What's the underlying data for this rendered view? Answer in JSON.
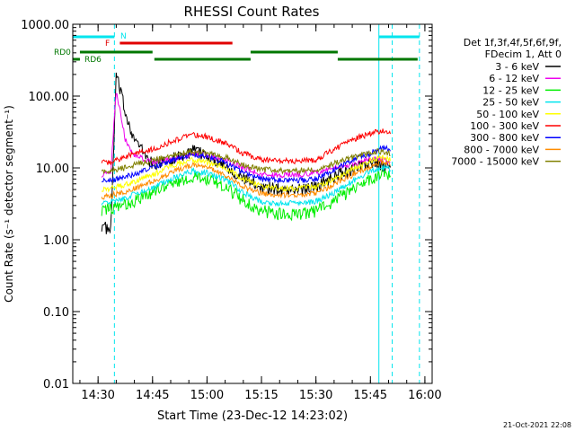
{
  "chart_data": {
    "type": "line",
    "title": "RHESSI Count Rates",
    "xlabel": "Start Time (23-Dec-12 14:23:02)",
    "ylabel": "Count Rate (s⁻¹ detector segment⁻¹)",
    "y_scale": "log",
    "ylim": [
      0.01,
      1000
    ],
    "xlim": [
      "14:23:02",
      "16:02:00"
    ],
    "x_ticks": [
      "14:30",
      "14:45",
      "15:00",
      "15:15",
      "15:30",
      "15:45",
      "16:00"
    ],
    "y_ticks": [
      "0.01",
      "0.10",
      "1.00",
      "10.00",
      "100.00",
      "1000.00"
    ],
    "grid": false,
    "legend_position": "right",
    "legend_header": [
      "Det 1f,3f,4f,5f,6f,9f,",
      "FDecim 1, Att 0"
    ],
    "timestamp": "21-Oct-2021 22:08",
    "flags": {
      "N": {
        "label": "N",
        "color": "#00e5ee",
        "spans": [
          [
            "14:23:02",
            "14:34:30"
          ],
          [
            "15:47:20",
            "15:58:30"
          ]
        ]
      },
      "F": {
        "label": "F",
        "color": "#e00000",
        "spans": [
          [
            "14:36:00",
            "15:07:00"
          ]
        ]
      },
      "RD0": {
        "label": "RD0",
        "color": "#007700",
        "spans": [
          [
            "14:25:00",
            "14:45:00"
          ],
          [
            "15:12:00",
            "15:36:00"
          ]
        ]
      },
      "RD6": {
        "label": "RD6",
        "color": "#007700",
        "spans": [
          [
            "14:23:02",
            "14:25:00"
          ],
          [
            "14:45:30",
            "15:12:00"
          ],
          [
            "15:36:00",
            "15:58:00"
          ]
        ]
      }
    },
    "vlines": [
      {
        "time": "14:23:02",
        "style": "solid",
        "color": "#00e5ee"
      },
      {
        "time": "14:34:30",
        "style": "dashed",
        "color": "#00e5ee"
      },
      {
        "time": "15:47:20",
        "style": "solid",
        "color": "#00e5ee"
      },
      {
        "time": "15:51:00",
        "style": "dashed",
        "color": "#00e5ee"
      },
      {
        "time": "15:58:30",
        "style": "dashed",
        "color": "#00e5ee"
      }
    ],
    "x": [
      "14:31:00",
      "14:33:30",
      "14:35:00",
      "14:37:30",
      "14:40:00",
      "14:45:00",
      "14:50:00",
      "14:56:00",
      "15:00:00",
      "15:05:00",
      "15:10:00",
      "15:15:00",
      "15:20:00",
      "15:25:00",
      "15:30:00",
      "15:35:00",
      "15:40:00",
      "15:45:00",
      "15:48:00",
      "15:50:30"
    ],
    "series": [
      {
        "name": "3 - 6 keV",
        "color": "#000000",
        "values": [
          1.6,
          1.3,
          200,
          60,
          25,
          11,
          13,
          17,
          15,
          11,
          7,
          5.5,
          5,
          5,
          5.5,
          7.5,
          9.5,
          12,
          11,
          10
        ]
      },
      {
        "name": "6 - 12 keV",
        "color": "#ee00ee",
        "values": [
          8,
          8.5,
          120,
          25,
          15,
          12,
          13,
          16,
          15,
          13,
          10,
          8,
          8,
          8,
          8.5,
          10,
          11.5,
          13,
          13,
          12
        ]
      },
      {
        "name": "12 - 25 keV",
        "color": "#00ee00",
        "values": [
          2.5,
          2.7,
          2.8,
          3,
          3.5,
          4.5,
          6,
          7.5,
          7,
          5.5,
          3.5,
          2.5,
          2.3,
          2.3,
          2.5,
          3.5,
          5,
          7,
          8,
          8
        ]
      },
      {
        "name": "25 - 50 keV",
        "color": "#00e5ee",
        "values": [
          3.2,
          3.4,
          3.5,
          3.8,
          4.3,
          5.2,
          7,
          9,
          8.5,
          7,
          4.5,
          3.4,
          3.2,
          3.2,
          3.4,
          4.5,
          6.5,
          9,
          10,
          9.5
        ]
      },
      {
        "name": "50 - 100 keV",
        "color": "#ffff00",
        "values": [
          5,
          5.2,
          5.4,
          5.8,
          6.5,
          8,
          10.5,
          13,
          12,
          10,
          7,
          5.5,
          5.2,
          5.2,
          5.5,
          7,
          9.5,
          12.5,
          14,
          13
        ]
      },
      {
        "name": "100 - 300 keV",
        "color": "#ff0000",
        "values": [
          12,
          12,
          13,
          14,
          16,
          18,
          23,
          29,
          27,
          22,
          16,
          13,
          12.5,
          12.5,
          13,
          18,
          25,
          30,
          33,
          31
        ]
      },
      {
        "name": "300 - 800 keV",
        "color": "#0000ff",
        "values": [
          6.5,
          6.7,
          7,
          7.5,
          8.2,
          10,
          12.5,
          15.5,
          14.5,
          12,
          8.5,
          7,
          6.7,
          6.7,
          7,
          9.5,
          13,
          16,
          19,
          18
        ]
      },
      {
        "name": "800 - 7000 keV",
        "color": "#ff8c00",
        "values": [
          4,
          4.1,
          4.3,
          4.7,
          5.2,
          6.4,
          8.5,
          11,
          10,
          8,
          5.5,
          4.4,
          4.2,
          4.2,
          4.4,
          6,
          8,
          10.5,
          12,
          11.5
        ]
      },
      {
        "name": "7000 - 15000 keV",
        "color": "#808000",
        "values": [
          9,
          9.2,
          9.5,
          10,
          11,
          12.5,
          15,
          17,
          16,
          14,
          11,
          9.5,
          9.2,
          9.2,
          9.5,
          11.5,
          14,
          16.5,
          17,
          16
        ]
      }
    ]
  }
}
